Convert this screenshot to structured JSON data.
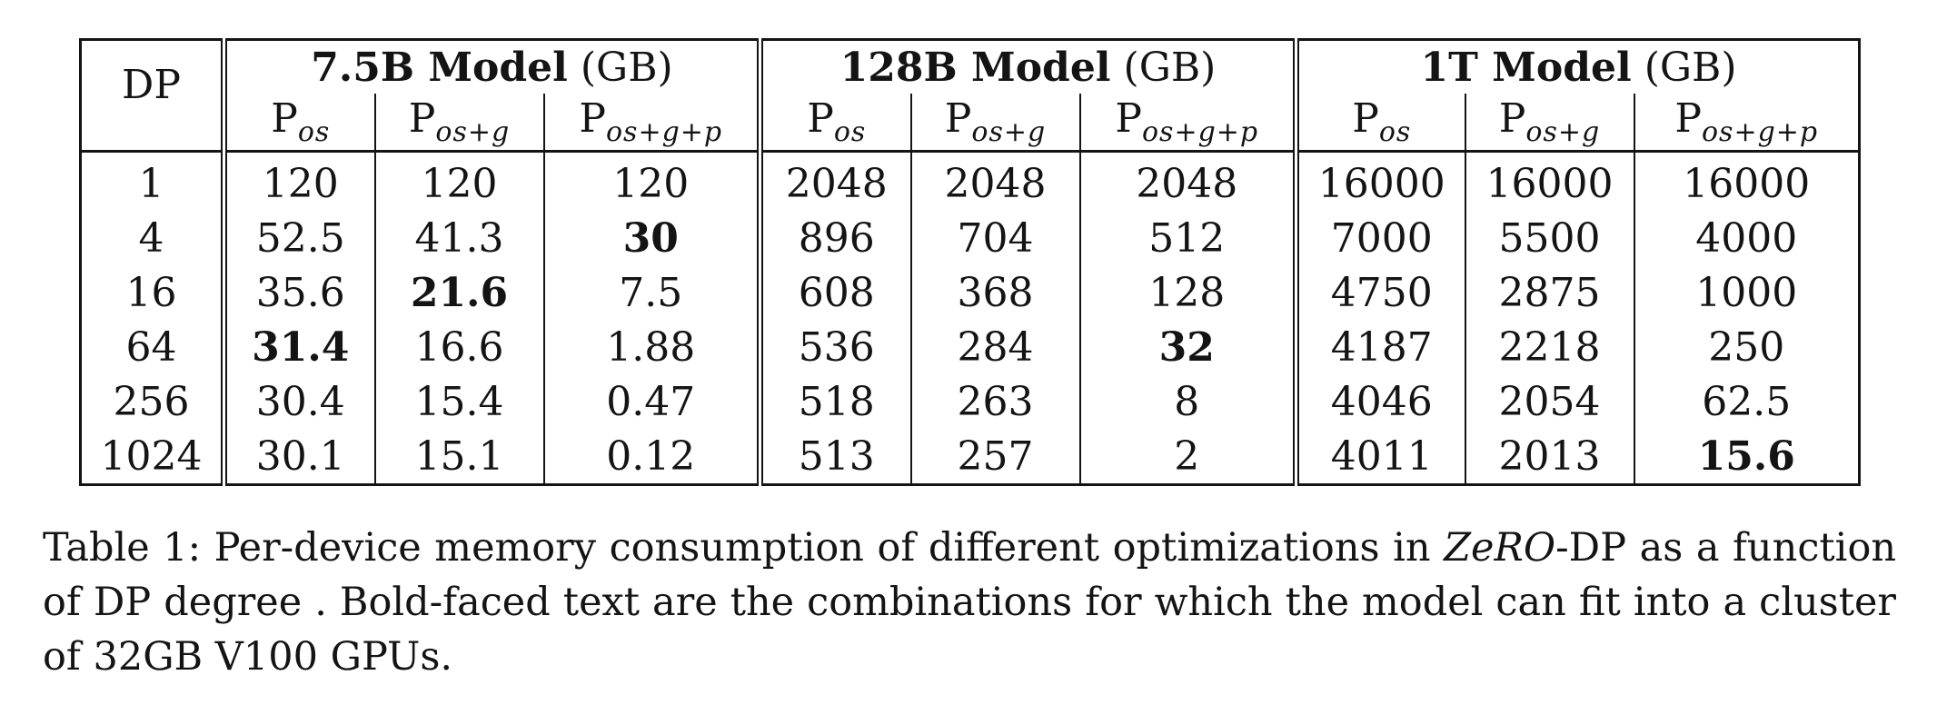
{
  "table": {
    "dp_header": "DP",
    "groups": [
      {
        "name": "7.5B Model",
        "unit": "(GB)"
      },
      {
        "name": "128B Model",
        "unit": "(GB)"
      },
      {
        "name": "1T Model",
        "unit": "(GB)"
      }
    ],
    "col_base": "P",
    "col_subscripts": [
      "os",
      "os+g",
      "os+g+p"
    ],
    "rows": [
      {
        "dp": "1",
        "cells": [
          {
            "v": "120",
            "b": false
          },
          {
            "v": "120",
            "b": false
          },
          {
            "v": "120",
            "b": false
          },
          {
            "v": "2048",
            "b": false
          },
          {
            "v": "2048",
            "b": false
          },
          {
            "v": "2048",
            "b": false
          },
          {
            "v": "16000",
            "b": false
          },
          {
            "v": "16000",
            "b": false
          },
          {
            "v": "16000",
            "b": false
          }
        ]
      },
      {
        "dp": "4",
        "cells": [
          {
            "v": "52.5",
            "b": false
          },
          {
            "v": "41.3",
            "b": false
          },
          {
            "v": "30",
            "b": true
          },
          {
            "v": "896",
            "b": false
          },
          {
            "v": "704",
            "b": false
          },
          {
            "v": "512",
            "b": false
          },
          {
            "v": "7000",
            "b": false
          },
          {
            "v": "5500",
            "b": false
          },
          {
            "v": "4000",
            "b": false
          }
        ]
      },
      {
        "dp": "16",
        "cells": [
          {
            "v": "35.6",
            "b": false
          },
          {
            "v": "21.6",
            "b": true
          },
          {
            "v": "7.5",
            "b": false
          },
          {
            "v": "608",
            "b": false
          },
          {
            "v": "368",
            "b": false
          },
          {
            "v": "128",
            "b": false
          },
          {
            "v": "4750",
            "b": false
          },
          {
            "v": "2875",
            "b": false
          },
          {
            "v": "1000",
            "b": false
          }
        ]
      },
      {
        "dp": "64",
        "cells": [
          {
            "v": "31.4",
            "b": true
          },
          {
            "v": "16.6",
            "b": false
          },
          {
            "v": "1.88",
            "b": false
          },
          {
            "v": "536",
            "b": false
          },
          {
            "v": "284",
            "b": false
          },
          {
            "v": "32",
            "b": true
          },
          {
            "v": "4187",
            "b": false
          },
          {
            "v": "2218",
            "b": false
          },
          {
            "v": "250",
            "b": false
          }
        ]
      },
      {
        "dp": "256",
        "cells": [
          {
            "v": "30.4",
            "b": false
          },
          {
            "v": "15.4",
            "b": false
          },
          {
            "v": "0.47",
            "b": false
          },
          {
            "v": "518",
            "b": false
          },
          {
            "v": "263",
            "b": false
          },
          {
            "v": "8",
            "b": false
          },
          {
            "v": "4046",
            "b": false
          },
          {
            "v": "2054",
            "b": false
          },
          {
            "v": "62.5",
            "b": false
          }
        ]
      },
      {
        "dp": "1024",
        "cells": [
          {
            "v": "30.1",
            "b": false
          },
          {
            "v": "15.1",
            "b": false
          },
          {
            "v": "0.12",
            "b": false
          },
          {
            "v": "513",
            "b": false
          },
          {
            "v": "257",
            "b": false
          },
          {
            "v": "2",
            "b": false
          },
          {
            "v": "4011",
            "b": false
          },
          {
            "v": "2013",
            "b": false
          },
          {
            "v": "15.6",
            "b": true
          }
        ]
      }
    ]
  },
  "caption": {
    "label": "Table 1:",
    "text_1": "Per-device memory consumption of different optimizations in",
    "emph": "ZeRO",
    "text_2": "-DP as a function of DP degree . Bold-faced text are the combinations for which the model can fit into a cluster of 32GB V100 GPUs."
  }
}
